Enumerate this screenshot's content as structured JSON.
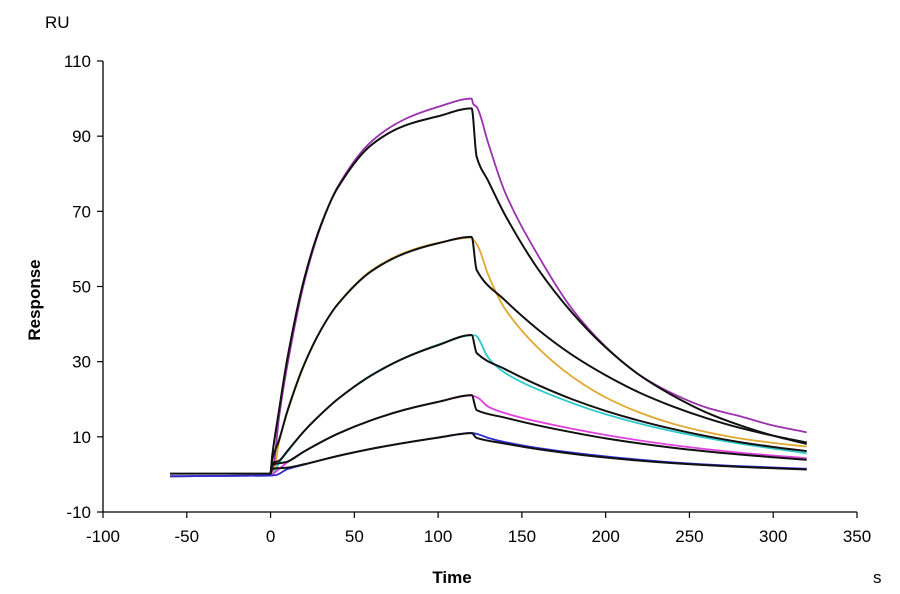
{
  "chart_data": {
    "type": "line",
    "title": "",
    "xlabel": "Time",
    "x_unit": "s",
    "ylabel": "Response",
    "y_unit": "RU",
    "xlim": [
      -100,
      350
    ],
    "ylim": [
      -10,
      110
    ],
    "x_ticks": [
      -100,
      -50,
      0,
      50,
      100,
      150,
      200,
      250,
      300,
      350
    ],
    "y_ticks": [
      -10,
      10,
      30,
      50,
      70,
      90,
      110
    ],
    "grid": false,
    "legend": "none",
    "series": [
      {
        "color": "#9b2fae",
        "points": [
          [
            -60,
            -0.5
          ],
          [
            0,
            -0.3
          ],
          [
            2,
            3
          ],
          [
            5,
            15
          ],
          [
            10,
            29
          ],
          [
            20,
            51
          ],
          [
            30,
            66
          ],
          [
            40,
            76.5
          ],
          [
            60,
            88.5
          ],
          [
            80,
            94.5
          ],
          [
            100,
            97.8
          ],
          [
            120,
            100
          ],
          [
            121,
            98.5
          ],
          [
            123,
            97.8
          ],
          [
            130,
            88
          ],
          [
            140,
            75
          ],
          [
            160,
            58
          ],
          [
            180,
            44
          ],
          [
            200,
            34
          ],
          [
            220,
            26.5
          ],
          [
            240,
            21.5
          ],
          [
            260,
            17.8
          ],
          [
            280,
            15.5
          ],
          [
            300,
            13
          ],
          [
            320,
            11.2
          ]
        ]
      },
      {
        "color": "#e0a82e",
        "points": [
          [
            -60,
            -0.5
          ],
          [
            0,
            -0.3
          ],
          [
            2,
            1
          ],
          [
            5,
            8.5
          ],
          [
            10,
            16.5
          ],
          [
            20,
            29
          ],
          [
            30,
            38.4
          ],
          [
            40,
            45.3
          ],
          [
            60,
            54.2
          ],
          [
            80,
            59
          ],
          [
            100,
            61.6
          ],
          [
            120,
            63
          ],
          [
            121,
            62.5
          ],
          [
            124,
            60.5
          ],
          [
            130,
            53
          ],
          [
            140,
            44
          ],
          [
            160,
            33.5
          ],
          [
            180,
            26
          ],
          [
            200,
            20.5
          ],
          [
            220,
            16.5
          ],
          [
            240,
            13.5
          ],
          [
            260,
            11.3
          ],
          [
            280,
            9.6
          ],
          [
            300,
            8.4
          ],
          [
            320,
            7.4
          ]
        ]
      },
      {
        "color": "#2ec9c9",
        "points": [
          [
            -60,
            -0.5
          ],
          [
            0,
            -0.3
          ],
          [
            2,
            0.5
          ],
          [
            5,
            3
          ],
          [
            10,
            6
          ],
          [
            20,
            11.5
          ],
          [
            30,
            16
          ],
          [
            40,
            20
          ],
          [
            60,
            26.4
          ],
          [
            80,
            31
          ],
          [
            100,
            34.5
          ],
          [
            120,
            37
          ],
          [
            122,
            37
          ],
          [
            130,
            31
          ],
          [
            140,
            27
          ],
          [
            160,
            22.5
          ],
          [
            200,
            16
          ],
          [
            240,
            11.5
          ],
          [
            280,
            8.2
          ],
          [
            320,
            5.6
          ]
        ]
      },
      {
        "color": "#e040e0",
        "points": [
          [
            -60,
            -0.5
          ],
          [
            0,
            -0.3
          ],
          [
            2,
            0.3
          ],
          [
            10,
            3.2
          ],
          [
            20,
            6.1
          ],
          [
            40,
            10.8
          ],
          [
            60,
            14.4
          ],
          [
            80,
            17.2
          ],
          [
            100,
            19.3
          ],
          [
            120,
            21
          ],
          [
            124,
            20.3
          ],
          [
            130,
            18
          ],
          [
            140,
            16.3
          ],
          [
            160,
            14
          ],
          [
            200,
            10.5
          ],
          [
            240,
            7.8
          ],
          [
            280,
            5.8
          ],
          [
            320,
            4.3
          ]
        ]
      },
      {
        "color": "#2a2ad0",
        "points": [
          [
            -60,
            -0.5
          ],
          [
            0,
            -0.3
          ],
          [
            3,
            -0.2
          ],
          [
            10,
            1.4
          ],
          [
            20,
            2.6
          ],
          [
            40,
            4.9
          ],
          [
            60,
            6.8
          ],
          [
            80,
            8.4
          ],
          [
            100,
            9.8
          ],
          [
            120,
            11
          ],
          [
            123,
            10.8
          ],
          [
            130,
            9.7
          ],
          [
            140,
            8.6
          ],
          [
            160,
            7
          ],
          [
            200,
            4.8
          ],
          [
            240,
            3.2
          ],
          [
            280,
            2.2
          ],
          [
            320,
            1.5
          ]
        ]
      },
      {
        "color": "#111111",
        "points": [
          [
            -60,
            0.2
          ],
          [
            0,
            0.2
          ],
          [
            1,
            5
          ],
          [
            5,
            16.9
          ],
          [
            10,
            30.8
          ],
          [
            20,
            51.9
          ],
          [
            30,
            66.3
          ],
          [
            40,
            76.2
          ],
          [
            60,
            87.6
          ],
          [
            80,
            92.8
          ],
          [
            100,
            95.3
          ],
          [
            120,
            97.4
          ],
          [
            123,
            84.5
          ],
          [
            130,
            78
          ],
          [
            140,
            69
          ],
          [
            160,
            54.4
          ],
          [
            180,
            43
          ],
          [
            200,
            33.8
          ],
          [
            220,
            26.5
          ],
          [
            240,
            21
          ],
          [
            260,
            16.5
          ],
          [
            280,
            13.1
          ],
          [
            300,
            10.3
          ],
          [
            320,
            8.1
          ]
        ]
      },
      {
        "color": "#111111",
        "points": [
          [
            0,
            0.2
          ],
          [
            1,
            4
          ],
          [
            5,
            9
          ],
          [
            10,
            16.8
          ],
          [
            20,
            29.2
          ],
          [
            30,
            38.4
          ],
          [
            40,
            45.2
          ],
          [
            60,
            54
          ],
          [
            80,
            58.8
          ],
          [
            100,
            61.5
          ],
          [
            120,
            63.2
          ],
          [
            123,
            54.4
          ],
          [
            140,
            46.3
          ],
          [
            160,
            38.4
          ],
          [
            180,
            31.8
          ],
          [
            200,
            26.4
          ],
          [
            220,
            21.8
          ],
          [
            240,
            18.1
          ],
          [
            260,
            15
          ],
          [
            280,
            12.4
          ],
          [
            300,
            10.3
          ],
          [
            320,
            8.5
          ]
        ]
      },
      {
        "color": "#111111",
        "points": [
          [
            0,
            0.2
          ],
          [
            1,
            3
          ],
          [
            5,
            3.6
          ],
          [
            10,
            6.2
          ],
          [
            20,
            11.5
          ],
          [
            30,
            16
          ],
          [
            40,
            20
          ],
          [
            60,
            26.3
          ],
          [
            80,
            31
          ],
          [
            100,
            34.4
          ],
          [
            120,
            37.1
          ],
          [
            123,
            32.3
          ],
          [
            140,
            28
          ],
          [
            160,
            23.7
          ],
          [
            180,
            20
          ],
          [
            200,
            16.9
          ],
          [
            220,
            14.3
          ],
          [
            240,
            12.1
          ],
          [
            260,
            10.2
          ],
          [
            280,
            8.6
          ],
          [
            300,
            7.3
          ],
          [
            320,
            6.2
          ]
        ]
      },
      {
        "color": "#111111",
        "points": [
          [
            0,
            0.2
          ],
          [
            1,
            2.5
          ],
          [
            10,
            3.4
          ],
          [
            20,
            6.1
          ],
          [
            40,
            10.8
          ],
          [
            60,
            14.4
          ],
          [
            80,
            17.2
          ],
          [
            100,
            19.3
          ],
          [
            120,
            21.1
          ],
          [
            123,
            17.1
          ],
          [
            140,
            15.1
          ],
          [
            160,
            13
          ],
          [
            180,
            11.2
          ],
          [
            200,
            9.6
          ],
          [
            240,
            7.1
          ],
          [
            280,
            5.3
          ],
          [
            320,
            3.9
          ]
        ]
      },
      {
        "color": "#111111",
        "points": [
          [
            0,
            0.2
          ],
          [
            1,
            1.5
          ],
          [
            10,
            1.8
          ],
          [
            20,
            2.7
          ],
          [
            40,
            4.9
          ],
          [
            60,
            6.8
          ],
          [
            80,
            8.4
          ],
          [
            100,
            9.8
          ],
          [
            120,
            11
          ],
          [
            123,
            9.7
          ],
          [
            140,
            8.2
          ],
          [
            160,
            6.7
          ],
          [
            200,
            4.5
          ],
          [
            240,
            3
          ],
          [
            280,
            2
          ],
          [
            320,
            1.3
          ]
        ]
      }
    ]
  }
}
